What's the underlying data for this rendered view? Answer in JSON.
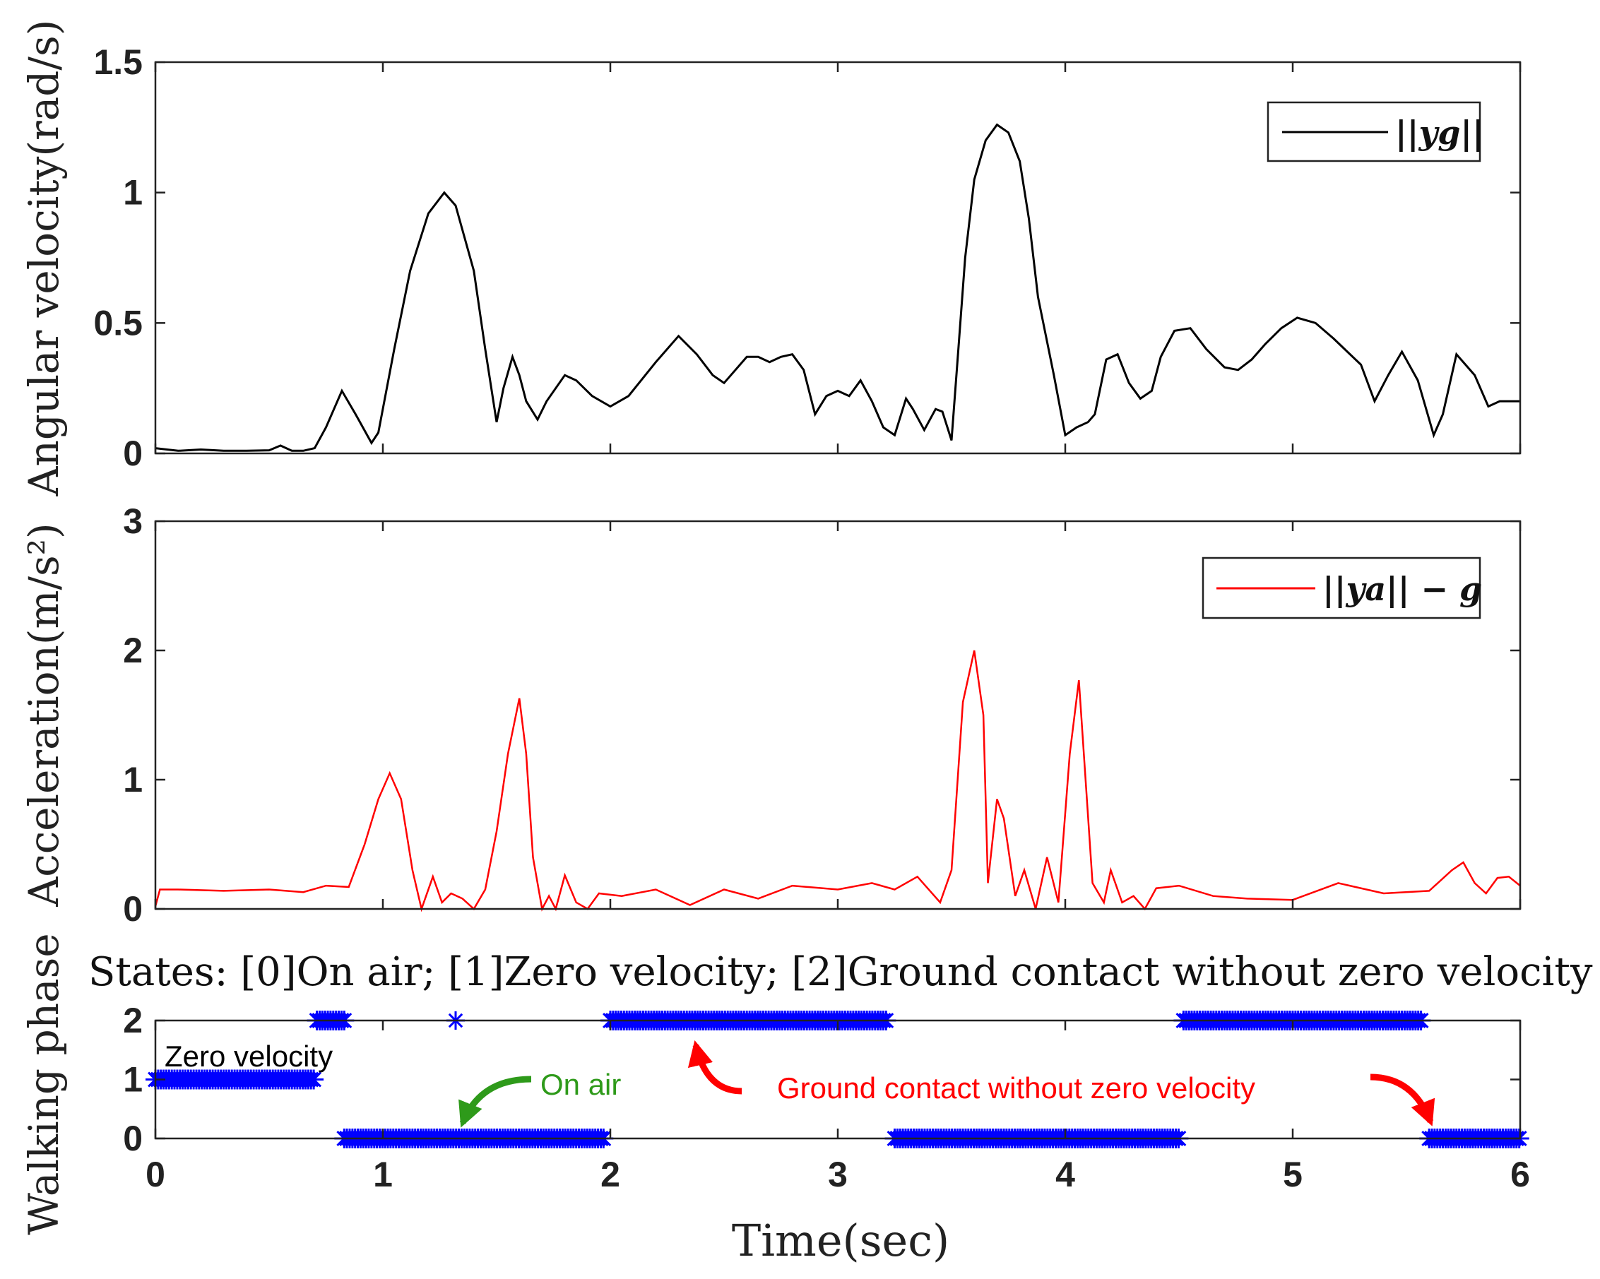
{
  "chart_data": [
    {
      "id": "gyro",
      "type": "line",
      "ylabel": "Angular velocity(rad/s)",
      "ylim": [
        0,
        1.5
      ],
      "yticks": [
        "0",
        "0.5",
        "1",
        "1.5"
      ],
      "ytick_values": [
        0,
        0.5,
        1,
        1.5
      ],
      "xlim": [
        0,
        6
      ],
      "legend": "||yg||",
      "legend_position": "top-right",
      "color": "#000000",
      "series": [
        {
          "name": "||yg||",
          "x": [
            0,
            0.1,
            0.2,
            0.3,
            0.4,
            0.5,
            0.55,
            0.6,
            0.65,
            0.7,
            0.75,
            0.82,
            0.88,
            0.95,
            0.98,
            1.05,
            1.12,
            1.2,
            1.27,
            1.32,
            1.4,
            1.45,
            1.5,
            1.53,
            1.57,
            1.6,
            1.63,
            1.68,
            1.72,
            1.8,
            1.85,
            1.92,
            2.0,
            2.08,
            2.2,
            2.3,
            2.38,
            2.45,
            2.5,
            2.55,
            2.6,
            2.65,
            2.7,
            2.75,
            2.8,
            2.85,
            2.9,
            2.95,
            3.0,
            3.05,
            3.1,
            3.15,
            3.2,
            3.25,
            3.3,
            3.33,
            3.38,
            3.43,
            3.46,
            3.5,
            3.53,
            3.56,
            3.6,
            3.65,
            3.7,
            3.75,
            3.8,
            3.84,
            3.88,
            3.95,
            4.0,
            4.05,
            4.1,
            4.13,
            4.18,
            4.23,
            4.28,
            4.33,
            4.38,
            4.42,
            4.48,
            4.55,
            4.62,
            4.7,
            4.76,
            4.82,
            4.88,
            4.95,
            5.02,
            5.1,
            5.18,
            5.24,
            5.3,
            5.36,
            5.42,
            5.48,
            5.55,
            5.62,
            5.66,
            5.72,
            5.8,
            5.86,
            5.91,
            5.95,
            6.0
          ],
          "y": [
            0.02,
            0.01,
            0.015,
            0.01,
            0.01,
            0.012,
            0.03,
            0.01,
            0.01,
            0.02,
            0.1,
            0.24,
            0.15,
            0.04,
            0.08,
            0.4,
            0.7,
            0.92,
            1.0,
            0.95,
            0.7,
            0.4,
            0.12,
            0.25,
            0.37,
            0.3,
            0.2,
            0.13,
            0.2,
            0.3,
            0.28,
            0.22,
            0.18,
            0.22,
            0.35,
            0.45,
            0.38,
            0.3,
            0.27,
            0.32,
            0.37,
            0.37,
            0.35,
            0.37,
            0.38,
            0.32,
            0.15,
            0.22,
            0.24,
            0.22,
            0.28,
            0.2,
            0.1,
            0.07,
            0.21,
            0.17,
            0.09,
            0.17,
            0.16,
            0.05,
            0.4,
            0.75,
            1.05,
            1.2,
            1.26,
            1.23,
            1.12,
            0.9,
            0.6,
            0.3,
            0.07,
            0.1,
            0.12,
            0.15,
            0.36,
            0.38,
            0.27,
            0.21,
            0.24,
            0.37,
            0.47,
            0.48,
            0.4,
            0.33,
            0.32,
            0.36,
            0.42,
            0.48,
            0.52,
            0.5,
            0.44,
            0.39,
            0.34,
            0.2,
            0.3,
            0.39,
            0.28,
            0.07,
            0.15,
            0.38,
            0.3,
            0.18,
            0.2,
            0.2,
            0.2
          ]
        }
      ]
    },
    {
      "id": "accel",
      "type": "line",
      "ylabel": "Acceleration(m/s²)",
      "ylim": [
        0,
        3
      ],
      "yticks": [
        "0",
        "1",
        "2",
        "3"
      ],
      "ytick_values": [
        0,
        1,
        2,
        3
      ],
      "xlim": [
        0,
        6
      ],
      "legend": "||ya|| − g",
      "legend_position": "top-right",
      "color": "#ff0000",
      "series": [
        {
          "name": "||ya|| - g",
          "x": [
            0,
            0.02,
            0.1,
            0.3,
            0.5,
            0.65,
            0.75,
            0.85,
            0.92,
            0.98,
            1.03,
            1.08,
            1.13,
            1.17,
            1.22,
            1.26,
            1.3,
            1.35,
            1.4,
            1.45,
            1.5,
            1.55,
            1.6,
            1.63,
            1.66,
            1.7,
            1.73,
            1.76,
            1.8,
            1.85,
            1.9,
            1.95,
            2.05,
            2.2,
            2.35,
            2.5,
            2.65,
            2.8,
            3.0,
            3.15,
            3.25,
            3.35,
            3.45,
            3.5,
            3.55,
            3.6,
            3.64,
            3.66,
            3.7,
            3.73,
            3.78,
            3.82,
            3.87,
            3.92,
            3.97,
            4.02,
            4.06,
            4.12,
            4.17,
            4.2,
            4.25,
            4.3,
            4.35,
            4.4,
            4.5,
            4.65,
            4.8,
            5.0,
            5.2,
            5.4,
            5.6,
            5.7,
            5.75,
            5.8,
            5.85,
            5.9,
            5.95,
            6.0
          ],
          "y": [
            0.02,
            0.15,
            0.15,
            0.14,
            0.15,
            0.13,
            0.18,
            0.17,
            0.5,
            0.85,
            1.05,
            0.85,
            0.3,
            0.0,
            0.25,
            0.05,
            0.12,
            0.08,
            0.0,
            0.15,
            0.6,
            1.2,
            1.63,
            1.2,
            0.4,
            0.0,
            0.1,
            0.0,
            0.26,
            0.05,
            0.0,
            0.12,
            0.1,
            0.15,
            0.03,
            0.15,
            0.08,
            0.18,
            0.15,
            0.2,
            0.15,
            0.25,
            0.05,
            0.3,
            1.6,
            2.0,
            1.5,
            0.2,
            0.85,
            0.7,
            0.1,
            0.3,
            0.0,
            0.4,
            0.05,
            1.2,
            1.77,
            0.2,
            0.05,
            0.3,
            0.05,
            0.1,
            0.0,
            0.16,
            0.18,
            0.1,
            0.08,
            0.07,
            0.2,
            0.12,
            0.14,
            0.3,
            0.36,
            0.2,
            0.12,
            0.24,
            0.25,
            0.18
          ]
        }
      ]
    },
    {
      "id": "phase",
      "type": "scatter",
      "ylabel": "Walking phase",
      "title": "States: [0]On air; [1]Zero velocity; [2]Ground contact without zero velocity",
      "ylim": [
        0,
        2
      ],
      "yticks": [
        "0",
        "1",
        "2"
      ],
      "ytick_values": [
        0,
        1,
        2
      ],
      "xlim": [
        0,
        6
      ],
      "xticks": [
        "0",
        "1",
        "2",
        "3",
        "4",
        "5",
        "6"
      ],
      "xtick_values": [
        0,
        1,
        2,
        3,
        4,
        5,
        6
      ],
      "xlabel": "Time(sec)",
      "marker": "*",
      "color": "#0000ff",
      "segments": [
        {
          "state": 1,
          "x_start": 0.0,
          "x_end": 0.7
        },
        {
          "state": 2,
          "x_start": 0.71,
          "x_end": 0.83
        },
        {
          "state": 0,
          "x_start": 0.83,
          "x_end": 1.97
        },
        {
          "state": 2,
          "x_start": 1.32,
          "x_end": 1.32
        },
        {
          "state": 2,
          "x_start": 2.0,
          "x_end": 3.22
        },
        {
          "state": 0,
          "x_start": 3.25,
          "x_end": 4.5
        },
        {
          "state": 2,
          "x_start": 4.52,
          "x_end": 5.57
        },
        {
          "state": 0,
          "x_start": 5.6,
          "x_end": 6.0
        }
      ],
      "annotations": {
        "zero_velocity": "Zero velocity",
        "on_air": "On air",
        "ground_contact": "Ground contact without zero velocity"
      },
      "annotation_colors": {
        "zero_velocity": "#000000",
        "on_air": "#2e9a1a",
        "ground_contact": "#ff0000"
      }
    }
  ]
}
